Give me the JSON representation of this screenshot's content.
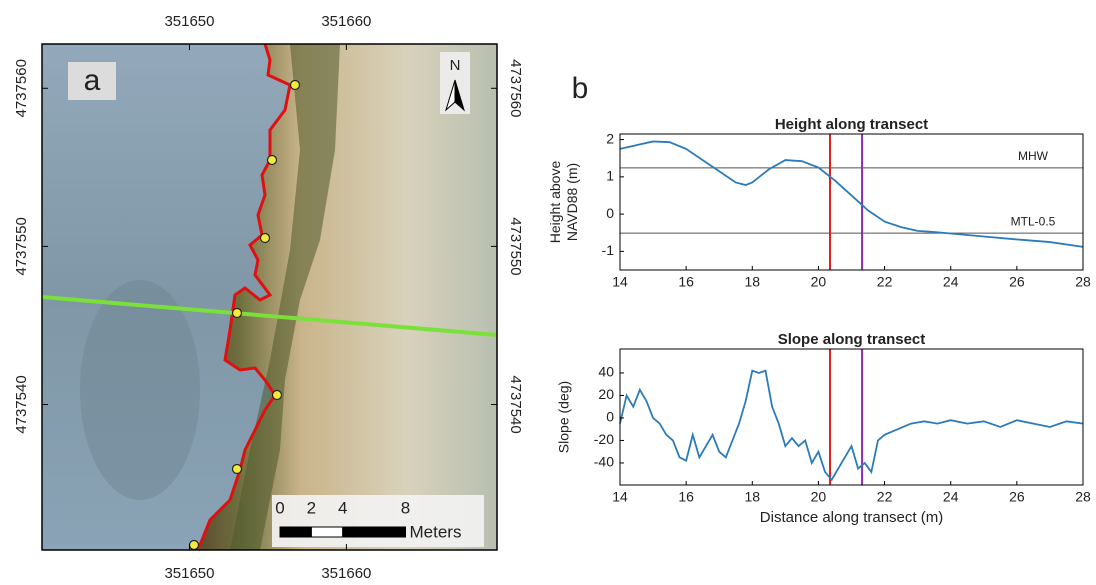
{
  "panel_labels": [
    "a",
    "b"
  ],
  "map": {
    "xlim": [
      351640.6,
      351669.6
    ],
    "ylim": [
      4737530.8,
      4737562.8
    ],
    "xticks": [
      351650,
      351660
    ],
    "yticks": [
      4737540,
      4737550,
      4737560
    ],
    "north": "N",
    "scale_bar": {
      "ticks": [
        0,
        2,
        4,
        8
      ],
      "unit": "Meters"
    }
  },
  "chart_data": [
    {
      "type": "line",
      "title": "Height along transect",
      "ylabel": [
        "Height above",
        "NAVD88 (m)"
      ],
      "x": [
        14,
        14.5,
        15,
        15.5,
        16,
        16.5,
        17,
        17.5,
        17.8,
        18,
        18.5,
        19,
        19.5,
        20,
        20.5,
        21,
        21.5,
        22,
        22.5,
        23,
        23.5,
        24,
        25,
        26,
        27,
        28
      ],
      "series": [
        {
          "color": "#2b7bba",
          "values": [
            1.75,
            1.85,
            1.95,
            1.93,
            1.75,
            1.45,
            1.15,
            0.85,
            0.78,
            0.85,
            1.2,
            1.45,
            1.42,
            1.25,
            0.9,
            0.5,
            0.1,
            -0.2,
            -0.35,
            -0.45,
            -0.48,
            -0.52,
            -0.6,
            -0.68,
            -0.75,
            -0.88
          ]
        }
      ],
      "xlim": [
        14,
        28
      ],
      "xticks": [
        14,
        16,
        18,
        20,
        22,
        24,
        26,
        28
      ],
      "ylim": [
        -1.5,
        2.15
      ],
      "yticks": [
        -1,
        0,
        1,
        2
      ],
      "hlines": [
        {
          "label": "MHW",
          "value": 1.24,
          "color": "#555555"
        },
        {
          "label": "MTL-0.5",
          "value": -0.51,
          "color": "#555555"
        }
      ],
      "vlines": [
        {
          "value": 20.35,
          "color": "#e02020"
        },
        {
          "value": 21.32,
          "color": "#8a2bb8"
        }
      ]
    },
    {
      "type": "line",
      "title": "Slope along transect",
      "ylabel": [
        "Slope (deg)"
      ],
      "xlabel": "Distance along transect (m)",
      "x": [
        14,
        14.2,
        14.4,
        14.6,
        14.8,
        15,
        15.2,
        15.4,
        15.6,
        15.8,
        16,
        16.2,
        16.4,
        16.6,
        16.8,
        17,
        17.2,
        17.4,
        17.6,
        17.8,
        18,
        18.2,
        18.4,
        18.6,
        18.8,
        19,
        19.2,
        19.4,
        19.6,
        19.8,
        20,
        20.2,
        20.4,
        20.6,
        20.8,
        21,
        21.2,
        21.4,
        21.6,
        21.8,
        22,
        22.4,
        22.8,
        23.2,
        23.6,
        24,
        24.5,
        25,
        25.5,
        26,
        26.5,
        27,
        27.5,
        28
      ],
      "series": [
        {
          "color": "#2b7bba",
          "values": [
            -5,
            20,
            10,
            25,
            15,
            0,
            -5,
            -15,
            -20,
            -35,
            -38,
            -15,
            -35,
            -25,
            -15,
            -30,
            -35,
            -20,
            -5,
            15,
            42,
            40,
            42,
            10,
            -5,
            -25,
            -18,
            -25,
            -20,
            -40,
            -30,
            -48,
            -55,
            -45,
            -35,
            -25,
            -45,
            -40,
            -48,
            -20,
            -15,
            -10,
            -5,
            -3,
            -5,
            -2,
            -5,
            -3,
            -8,
            -2,
            -5,
            -8,
            -3,
            -5
          ]
        }
      ],
      "xlim": [
        14,
        28
      ],
      "xticks": [
        14,
        16,
        18,
        20,
        22,
        24,
        26,
        28
      ],
      "ylim": [
        -59.6,
        61.3
      ],
      "yticks": [
        -40,
        -20,
        0,
        20,
        40
      ],
      "hlines": [],
      "vlines": [
        {
          "value": 20.35,
          "color": "#e02020"
        },
        {
          "value": 21.32,
          "color": "#8a2bb8"
        }
      ]
    }
  ]
}
